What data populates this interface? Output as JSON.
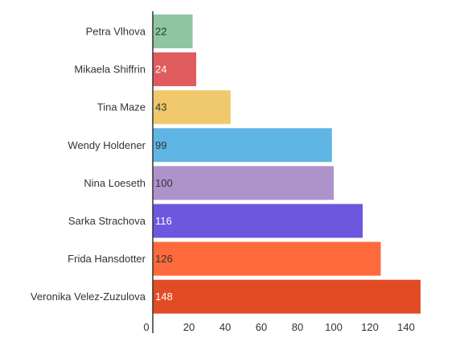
{
  "chart_data": {
    "type": "bar",
    "orientation": "horizontal",
    "categories": [
      "Petra Vlhova",
      "Mikaela Shiffrin",
      "Tina Maze",
      "Wendy Holdener",
      "Nina Loeseth",
      "Sarka Strachova",
      "Frida Hansdotter",
      "Veronika Velez-Zuzulova"
    ],
    "values": [
      22,
      24,
      43,
      99,
      100,
      116,
      126,
      148
    ],
    "data_labels": [
      "22",
      "24",
      "43",
      "99",
      "100",
      "116",
      "126",
      "148"
    ],
    "colors": [
      "#8dc6a1",
      "#e05b5e",
      "#efc96b",
      "#5fb5e3",
      "#ae93cb",
      "#6c57de",
      "#ff6a3c",
      "#e24c24"
    ],
    "value_label_colors": [
      "#333333",
      "#ffffff",
      "#333333",
      "#333333",
      "#333333",
      "#ffffff",
      "#333333",
      "#ffffff"
    ],
    "xlim": [
      0,
      156
    ],
    "xticks": [
      0,
      20,
      40,
      60,
      80,
      100,
      120,
      140
    ],
    "xtick_labels": [
      "0",
      "20",
      "40",
      "60",
      "80",
      "100",
      "120",
      "140"
    ],
    "grid": false,
    "legend": "none",
    "title": "",
    "xlabel": "",
    "ylabel": ""
  }
}
